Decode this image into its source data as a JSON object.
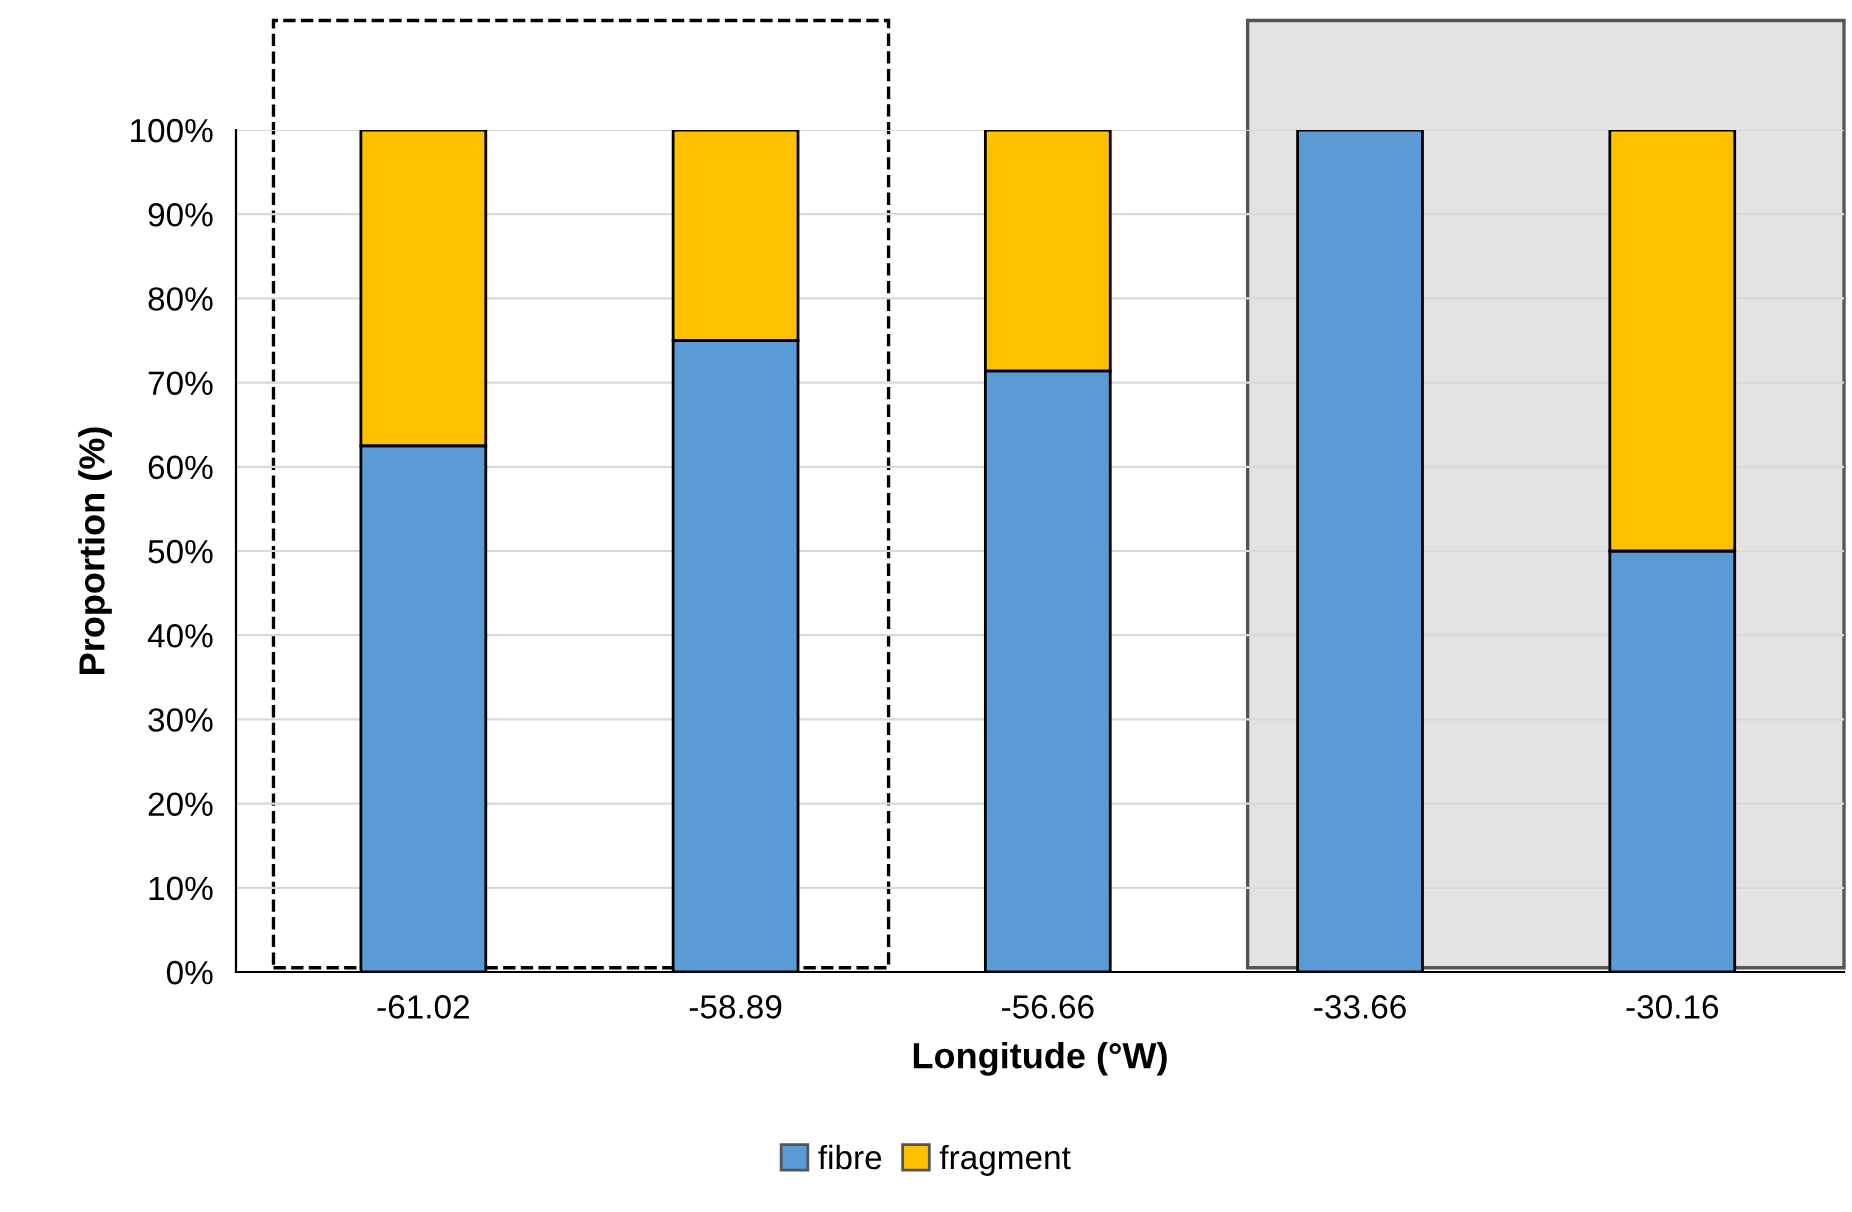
{
  "chart_data": {
    "type": "bar",
    "stacked": true,
    "xlabel": "Longitude (°W)",
    "ylabel": "Proportion (%)",
    "categories": [
      "-61.02",
      "-58.89",
      "-56.66",
      "-33.66",
      "-30.16"
    ],
    "series": [
      {
        "name": "fibre",
        "color": "#5b9bd5",
        "values": [
          62.5,
          75,
          71.4,
          100,
          50
        ]
      },
      {
        "name": "fragment",
        "color": "#ffc000",
        "values": [
          37.5,
          25,
          28.6,
          null,
          50
        ]
      }
    ],
    "ylim": [
      0,
      100
    ],
    "yticks": [
      {
        "value": 0,
        "label": "0%"
      },
      {
        "value": 10,
        "label": "10%"
      },
      {
        "value": 20,
        "label": "20%"
      },
      {
        "value": 30,
        "label": "30%"
      },
      {
        "value": 40,
        "label": "40%"
      },
      {
        "value": 50,
        "label": "50%"
      },
      {
        "value": 60,
        "label": "60%"
      },
      {
        "value": 70,
        "label": "70%"
      },
      {
        "value": 80,
        "label": "80%"
      },
      {
        "value": 90,
        "label": "90%"
      },
      {
        "value": 100,
        "label": "100%"
      }
    ],
    "bands": [
      {
        "axis": "x",
        "from": "-33.66",
        "to": "-30.16",
        "color": "#e4e2e4"
      }
    ],
    "grid": "y",
    "legend": "bottom"
  }
}
